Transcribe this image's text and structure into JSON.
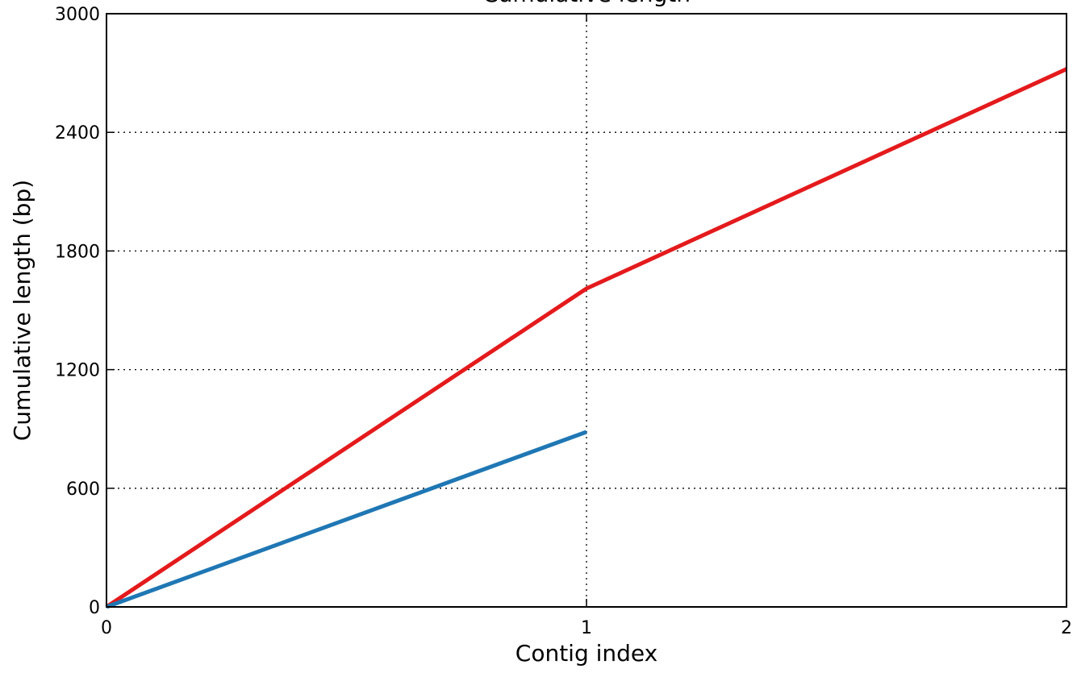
{
  "chart_data": {
    "type": "line",
    "title": "Cumulative length",
    "xlabel": "Contig index",
    "ylabel": "Cumulative length (bp)",
    "xlim": [
      0,
      2
    ],
    "ylim": [
      0,
      3000
    ],
    "xticks": [
      0,
      1,
      2
    ],
    "yticks": [
      0,
      600,
      1200,
      1800,
      2400,
      3000
    ],
    "grid": true,
    "series": [
      {
        "color": "#e41a1c",
        "x": [
          0,
          1,
          2
        ],
        "values": [
          0,
          1610,
          2720
        ]
      },
      {
        "color": "#1f77b4",
        "x": [
          0,
          1
        ],
        "values": [
          0,
          885
        ]
      }
    ]
  }
}
